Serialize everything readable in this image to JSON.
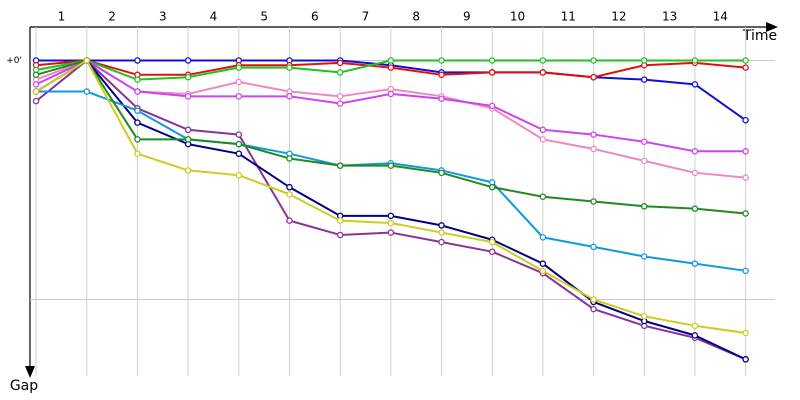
{
  "chart_data": {
    "type": "line",
    "x_label": "Time",
    "y_label": "Gap",
    "x": [
      0,
      1,
      2,
      3,
      4,
      5,
      6,
      7,
      8,
      9,
      10,
      11,
      12,
      13,
      14
    ],
    "xlim": [
      -0.12,
      14.58
    ],
    "xticks": [
      {
        "value": 0.5,
        "label": "1"
      },
      {
        "value": 1.5,
        "label": "2"
      },
      {
        "value": 2.5,
        "label": "3"
      },
      {
        "value": 3.5,
        "label": "4"
      },
      {
        "value": 4.5,
        "label": "5"
      },
      {
        "value": 5.5,
        "label": "6"
      },
      {
        "value": 6.5,
        "label": "7"
      },
      {
        "value": 7.5,
        "label": "8"
      },
      {
        "value": 8.5,
        "label": "9"
      },
      {
        "value": 9.5,
        "label": "10"
      },
      {
        "value": 10.5,
        "label": "11"
      },
      {
        "value": 11.5,
        "label": "12"
      },
      {
        "value": 12.5,
        "label": "13"
      },
      {
        "value": 13.5,
        "label": "14"
      }
    ],
    "xgrid": [
      0,
      1,
      2,
      3,
      4,
      5,
      6,
      7,
      8,
      9,
      10,
      11,
      12,
      13,
      14
    ],
    "ylim": [
      -0.14,
      1.32
    ],
    "yticks": [
      {
        "value": 0,
        "label": "+0'"
      }
    ],
    "ygrid": [
      0,
      1
    ],
    "series": [
      {
        "color": "#1010d0",
        "values": [
          0,
          0,
          0,
          0,
          0,
          0,
          0,
          0.02,
          0.05,
          0.05,
          0.05,
          0.07,
          0.08,
          0.1,
          0.25
        ]
      },
      {
        "color": "#e01010",
        "values": [
          0.02,
          0,
          0.06,
          0.06,
          0.02,
          0.02,
          0.01,
          0.03,
          0.06,
          0.05,
          0.05,
          0.07,
          0.02,
          0.01,
          0.03
        ]
      },
      {
        "color": "#22c022",
        "values": [
          0.04,
          0,
          0.08,
          0.07,
          0.03,
          0.03,
          0.05,
          0,
          0,
          0,
          0,
          0,
          0,
          0,
          0
        ]
      },
      {
        "color": "#f088c0",
        "values": [
          0.08,
          0,
          0.13,
          0.14,
          0.09,
          0.13,
          0.15,
          0.12,
          0.15,
          0.2,
          0.33,
          0.37,
          0.42,
          0.47,
          0.49
        ]
      },
      {
        "color": "#cc44ee",
        "values": [
          0.1,
          0,
          0.13,
          0.15,
          0.15,
          0.15,
          0.18,
          0.14,
          0.16,
          0.19,
          0.29,
          0.31,
          0.34,
          0.38,
          0.38
        ]
      },
      {
        "color": "#883399",
        "values": [
          0.17,
          0,
          0.2,
          0.29,
          0.31,
          0.67,
          0.73,
          0.72,
          0.76,
          0.8,
          0.89,
          1.04,
          1.11,
          1.16,
          1.25
        ]
      },
      {
        "color": "#000088",
        "values": [
          0.13,
          0,
          0.26,
          0.35,
          0.39,
          0.53,
          0.65,
          0.65,
          0.69,
          0.75,
          0.85,
          1.01,
          1.09,
          1.15,
          1.25
        ]
      },
      {
        "color": "#1199dd",
        "values": [
          0.13,
          0.13,
          0.21,
          0.33,
          0.35,
          0.39,
          0.44,
          0.43,
          0.46,
          0.51,
          0.74,
          0.78,
          0.82,
          0.85,
          0.88
        ]
      },
      {
        "color": "#228822",
        "values": [
          0.06,
          0,
          0.33,
          0.33,
          0.35,
          0.41,
          0.44,
          0.44,
          0.47,
          0.53,
          0.57,
          0.59,
          0.61,
          0.62,
          0.64
        ]
      },
      {
        "color": "#cccc22",
        "values": [
          0.13,
          0,
          0.39,
          0.46,
          0.48,
          0.56,
          0.67,
          0.68,
          0.72,
          0.76,
          0.88,
          1.0,
          1.07,
          1.11,
          1.14
        ]
      }
    ]
  }
}
